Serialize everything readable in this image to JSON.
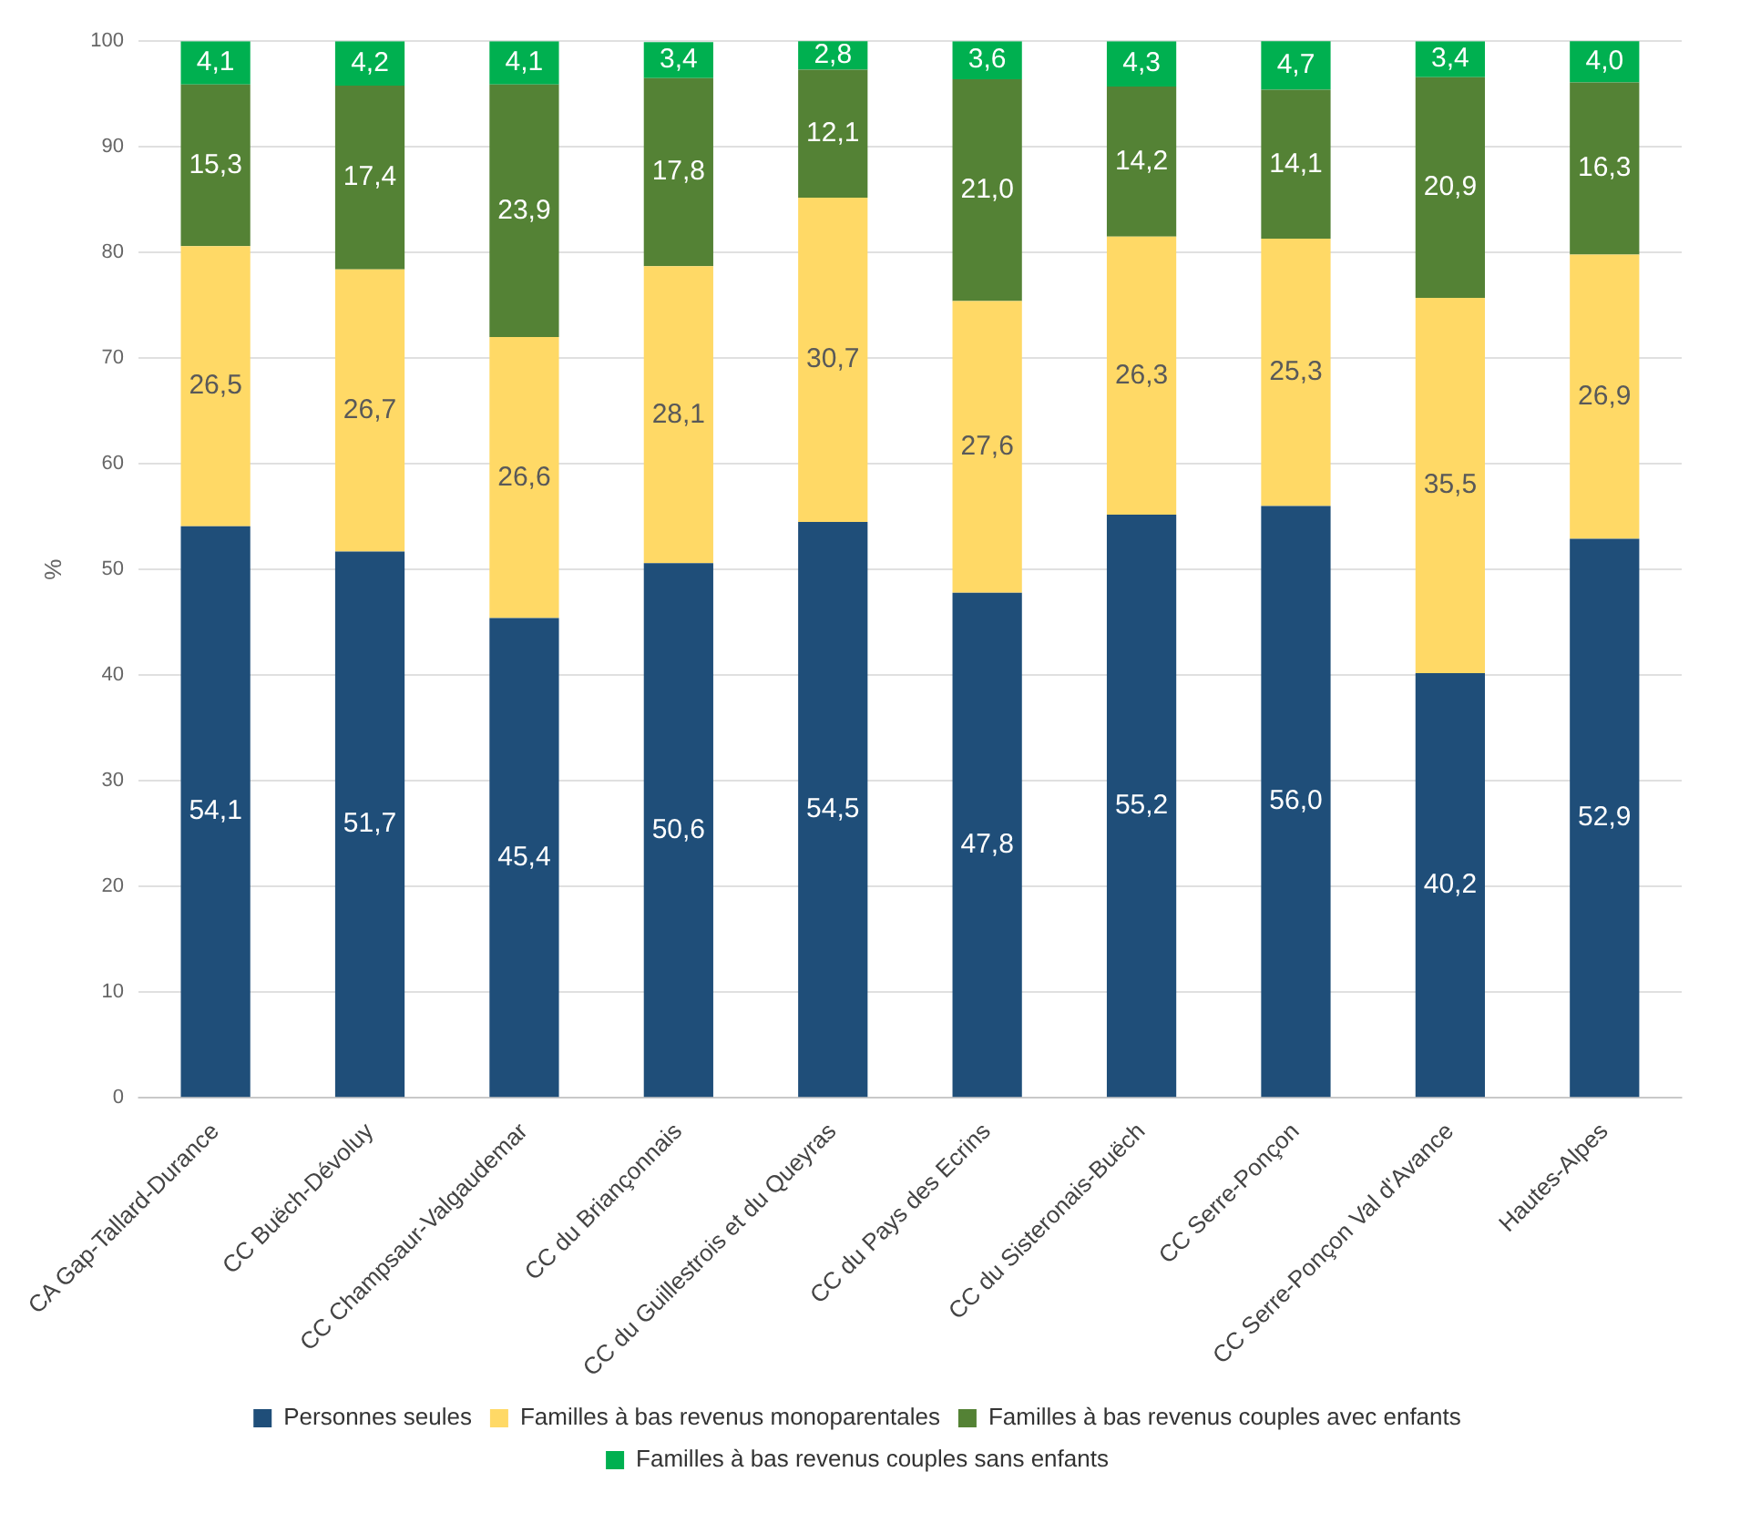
{
  "chart_data": {
    "type": "bar",
    "stacked": true,
    "ylabel": "%",
    "categories": [
      "CA Gap-Tallard-Durance",
      "CC Buëch-Dévoluy",
      "CC Champsaur-Valgaudemar",
      "CC du Briançonnais",
      "CC du Guillestrois et du Queyras",
      "CC du Pays des Ecrins",
      "CC du Sisteronais-Buëch",
      "CC Serre-Ponçon",
      "CC Serre-Ponçon Val d'Avance",
      "Hautes-Alpes"
    ],
    "series": [
      {
        "name": "Personnes seules",
        "color": "#1f4e79",
        "values": [
          54.1,
          51.7,
          45.4,
          50.6,
          54.5,
          47.8,
          55.2,
          56.0,
          40.2,
          52.9
        ],
        "value_labels": [
          "54,1",
          "51,7",
          "45,4",
          "50,6",
          "54,5",
          "47,8",
          "55,2",
          "56,0",
          "40,2",
          "52,9"
        ]
      },
      {
        "name": "Familles à bas revenus monoparentales",
        "color": "#ffd966",
        "values": [
          26.5,
          26.7,
          26.6,
          28.1,
          30.7,
          27.6,
          26.3,
          25.3,
          35.5,
          26.9
        ],
        "value_labels": [
          "26,5",
          "26,7",
          "26,6",
          "28,1",
          "30,7",
          "27,6",
          "26,3",
          "25,3",
          "35,5",
          "26,9"
        ]
      },
      {
        "name": "Familles à bas revenus couples avec enfants",
        "color": "#548235",
        "values": [
          15.3,
          17.4,
          23.9,
          17.8,
          12.1,
          21.0,
          14.2,
          14.1,
          20.9,
          16.3
        ],
        "value_labels": [
          "15,3",
          "17,4",
          "23,9",
          "17,8",
          "12,1",
          "21,0",
          "14,2",
          "14,1",
          "20,9",
          "16,3"
        ]
      },
      {
        "name": "Familles à bas revenus couples sans enfants",
        "color": "#00b050",
        "values": [
          4.1,
          4.2,
          4.1,
          3.4,
          2.8,
          3.6,
          4.3,
          4.7,
          3.4,
          4.0
        ],
        "value_labels": [
          "4,1",
          "4,2",
          "4,1",
          "3,4",
          "2,8",
          "3,6",
          "4,3",
          "4,7",
          "3,4",
          "4,0"
        ]
      }
    ],
    "ylim": [
      0,
      100
    ],
    "yticks": [
      0,
      10,
      20,
      30,
      40,
      50,
      60,
      70,
      80,
      90,
      100
    ],
    "grid": "y",
    "legend": "bottom"
  }
}
